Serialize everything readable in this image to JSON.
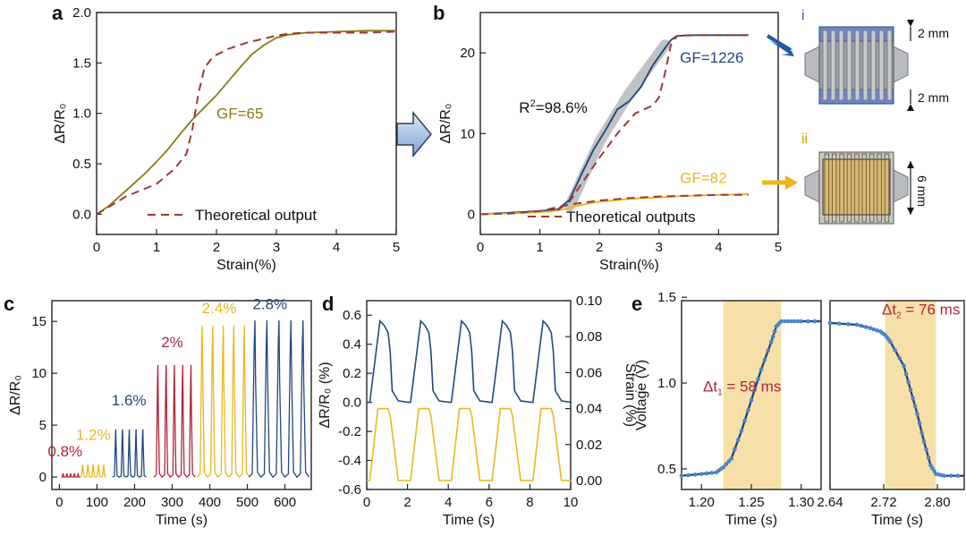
{
  "colors": {
    "olive": "#8a7a10",
    "theory": "#a33535",
    "navy": "#24477a",
    "yellow": "#e8b820",
    "crimson": "#b0243a",
    "band": "#f6db99",
    "fit_band": "#b9bdc0"
  },
  "chart_data": [
    {
      "id": "a",
      "type": "line",
      "panel_label": "a",
      "xlabel": "Strain(%)",
      "ylabel": "ΔR/R₀",
      "xlim": [
        0,
        5
      ],
      "ylim": [
        -0.2,
        2.0
      ],
      "xticks": [
        0,
        1,
        2,
        3,
        4,
        5
      ],
      "xtick_labels": [
        "0",
        "1",
        "2",
        "3",
        "4",
        "5"
      ],
      "yticks": [
        0.0,
        0.5,
        1.0,
        1.5,
        2.0
      ],
      "ytick_labels": [
        "0.0",
        "0.5",
        "1.0",
        "1.5",
        "2.0"
      ],
      "annotations": [
        {
          "text": "GF=65",
          "x": 2.0,
          "y": 0.95,
          "color": "olive"
        }
      ],
      "legend": {
        "label": "Theoretical output",
        "position": "bottom"
      },
      "series": [
        {
          "role": "measured",
          "color": "olive",
          "style": "solid",
          "x": [
            0,
            0.2,
            0.5,
            0.8,
            1.0,
            1.2,
            1.4,
            1.6,
            1.8,
            2.0,
            2.2,
            2.4,
            2.6,
            2.8,
            3.0,
            3.2,
            3.5,
            4.0,
            4.5,
            5.0
          ],
          "y": [
            0,
            0.08,
            0.24,
            0.4,
            0.52,
            0.65,
            0.8,
            0.94,
            1.06,
            1.18,
            1.32,
            1.46,
            1.59,
            1.68,
            1.75,
            1.78,
            1.8,
            1.81,
            1.82,
            1.82
          ]
        },
        {
          "role": "theory",
          "color": "theory",
          "style": "dashed",
          "x": [
            0,
            0.5,
            1.0,
            1.3,
            1.5,
            1.6,
            1.7,
            1.8,
            1.9,
            2.0,
            2.2,
            2.5,
            3.0,
            3.2,
            3.5,
            4.0,
            4.5,
            5.0
          ],
          "y": [
            0,
            0.18,
            0.3,
            0.45,
            0.6,
            0.85,
            1.2,
            1.45,
            1.53,
            1.58,
            1.64,
            1.7,
            1.77,
            1.79,
            1.8,
            1.8,
            1.8,
            1.81
          ]
        }
      ]
    },
    {
      "id": "b",
      "type": "line",
      "panel_label": "b",
      "xlabel": "Strain(%)",
      "ylabel": "ΔR/R₀",
      "xlim": [
        0,
        5
      ],
      "ylim": [
        -2.5,
        25
      ],
      "xticks": [
        0,
        1,
        2,
        3,
        4,
        5
      ],
      "xtick_labels": [
        "0",
        "1",
        "2",
        "3",
        "4",
        "5"
      ],
      "yticks": [
        0,
        10,
        20
      ],
      "ytick_labels": [
        "0",
        "10",
        "20"
      ],
      "annotations": [
        {
          "text": "GF=1226",
          "x": 3.35,
          "y": 18.8,
          "color": "navy"
        },
        {
          "text_main": "R",
          "text_sup": "2",
          "text_rest": "=98.6%",
          "x": 0.65,
          "y": 12.6,
          "color": "ink"
        },
        {
          "text": "GF=82",
          "x": 3.35,
          "y": 3.9,
          "color": "yellow"
        }
      ],
      "legend": {
        "label": "Theoretical outputs",
        "position": "bottom"
      },
      "fit_band": {
        "x": [
          1.5,
          2.0,
          2.5,
          3.1
        ],
        "y": [
          1.0,
          9.0,
          15.0,
          21.0
        ]
      },
      "series": [
        {
          "role": "high-GF",
          "color": "navy",
          "style": "solid",
          "x": [
            0,
            0.5,
            1.0,
            1.3,
            1.5,
            1.7,
            1.9,
            2.1,
            2.3,
            2.5,
            2.7,
            2.9,
            3.1,
            3.2,
            3.3,
            3.5,
            4.0,
            4.5
          ],
          "y": [
            0,
            0.2,
            0.4,
            0.6,
            1.8,
            5.0,
            8.0,
            10.4,
            13.0,
            14.0,
            15.8,
            18.5,
            20.6,
            21.6,
            22.1,
            22.2,
            22.2,
            22.2
          ]
        },
        {
          "role": "low-GF",
          "color": "yellow",
          "style": "solid",
          "x": [
            0,
            0.5,
            1.0,
            1.2,
            1.4,
            1.6,
            1.8,
            2.0,
            2.5,
            3.0,
            3.5,
            4.0,
            4.5
          ],
          "y": [
            0,
            0.1,
            0.25,
            0.35,
            0.6,
            1.0,
            1.3,
            1.55,
            1.9,
            2.1,
            2.3,
            2.4,
            2.5
          ]
        },
        {
          "role": "theory-high",
          "color": "theory",
          "style": "dashed",
          "x": [
            1.3,
            1.5,
            1.7,
            2.0,
            2.3,
            2.6,
            2.9,
            3.0,
            3.1,
            3.2,
            3.3,
            3.6,
            4.5
          ],
          "y": [
            0.5,
            1.6,
            3.8,
            7.0,
            10.0,
            12.5,
            13.5,
            14.5,
            17.5,
            21.0,
            22.1,
            22.2,
            22.2
          ]
        },
        {
          "role": "theory-low",
          "color": "theory",
          "style": "dashed",
          "x": [
            0,
            0.5,
            1.0,
            1.5,
            2.0,
            2.5,
            3.0,
            3.5,
            4.0,
            4.5
          ],
          "y": [
            0,
            0.1,
            0.4,
            1.2,
            1.7,
            2.0,
            2.2,
            2.3,
            2.4,
            2.4
          ]
        }
      ]
    },
    {
      "id": "c",
      "type": "line",
      "panel_label": "c",
      "xlabel": "Time (s)",
      "ylabel": "ΔR/R₀",
      "xlim": [
        -20,
        670
      ],
      "ylim": [
        -1.2,
        17
      ],
      "xticks": [
        0,
        100,
        200,
        300,
        400,
        500,
        600
      ],
      "xtick_labels": [
        "0",
        "100",
        "200",
        "300",
        "400",
        "500",
        "600"
      ],
      "yticks": [
        0,
        5,
        10,
        15
      ],
      "ytick_labels": [
        "0",
        "5",
        "10",
        "15"
      ],
      "groups": [
        {
          "label": "0.8%",
          "color": "crimson",
          "start": 10,
          "period": 10,
          "count": 5,
          "peak": 0.35,
          "width": 4,
          "label_x": 15,
          "label_y": 2.0
        },
        {
          "label": "1.2%",
          "color": "yellow",
          "start": 62,
          "period": 14,
          "count": 5,
          "peak": 1.2,
          "width": 7,
          "label_x": 90,
          "label_y": 3.6
        },
        {
          "label": "1.6%",
          "color": "navy",
          "start": 150,
          "period": 18,
          "count": 5,
          "peak": 4.6,
          "width": 7,
          "label_x": 185,
          "label_y": 6.9
        },
        {
          "label": "2%",
          "color": "crimson",
          "start": 262,
          "period": 22,
          "count": 5,
          "peak": 10.8,
          "width": 8,
          "label_x": 300,
          "label_y": 12.5
        },
        {
          "label": "2.4%",
          "color": "yellow",
          "start": 380,
          "period": 28,
          "count": 5,
          "peak": 14.6,
          "width": 11,
          "label_x": 425,
          "label_y": 15.8
        },
        {
          "label": "2.8%",
          "color": "navy",
          "start": 520,
          "period": 32,
          "count": 5,
          "peak": 15.1,
          "width": 14,
          "label_x": 560,
          "label_y": 16.2
        }
      ]
    },
    {
      "id": "d",
      "type": "line",
      "panel_label": "d",
      "xlabel": "Time (s)",
      "ylabel": "ΔR/R₀ (%)",
      "ylabel2": "Strain (%)",
      "xlim": [
        0,
        10
      ],
      "ylim": [
        -0.6,
        0.7
      ],
      "ylim2": [
        -0.005,
        0.1
      ],
      "xticks": [
        0,
        2,
        4,
        6,
        8,
        10
      ],
      "xtick_labels": [
        "0",
        "2",
        "4",
        "6",
        "8",
        "10"
      ],
      "yticks": [
        -0.6,
        -0.4,
        -0.2,
        0.0,
        0.2,
        0.4,
        0.6
      ],
      "ytick_labels": [
        "-0.6",
        "-0.4",
        "-0.2",
        "0.0",
        "0.2",
        "0.4",
        "0.6"
      ],
      "yticks2": [
        0.0,
        0.02,
        0.04,
        0.06,
        0.08,
        0.1
      ],
      "ytick_labels2": [
        "0.00",
        "0.02",
        "0.04",
        "0.06",
        "0.08",
        "0.10"
      ],
      "period": 2.0,
      "phase": 0.1,
      "cycles": 5,
      "resistance": {
        "color": "navy",
        "low": 0.0,
        "high": 0.56,
        "mid": 0.4
      },
      "strain": {
        "color": "yellow",
        "low": 0.0,
        "high": 0.04
      }
    },
    {
      "id": "e1",
      "type": "line",
      "panel_label": "e",
      "xlabel": "Time (s)",
      "ylabel": "Voltage (V)",
      "xlim": [
        1.18,
        1.32
      ],
      "ylim": [
        0.38,
        1.48
      ],
      "xticks": [
        1.2,
        1.25,
        1.3
      ],
      "xtick_labels": [
        "1.20",
        "1.25",
        "1.30"
      ],
      "yticks": [
        0.5,
        1.0,
        1.5
      ],
      "ytick_labels": [
        "0.5",
        "1.0",
        "1.5"
      ],
      "band": [
        1.222,
        1.28
      ],
      "annotation": {
        "text_main": "Δt",
        "text_sub": "1",
        "text_rest": " = 58 ms",
        "color": "crimson"
      },
      "series": [
        {
          "color": "navy",
          "x": [
            1.18,
            1.2,
            1.215,
            1.222,
            1.23,
            1.24,
            1.25,
            1.26,
            1.27,
            1.275,
            1.28,
            1.29,
            1.3,
            1.32
          ],
          "y": [
            0.46,
            0.47,
            0.48,
            0.51,
            0.56,
            0.72,
            0.9,
            1.08,
            1.24,
            1.33,
            1.36,
            1.36,
            1.36,
            1.36
          ]
        }
      ]
    },
    {
      "id": "e2",
      "type": "line",
      "xlabel": "Time (s)",
      "ylabel": "",
      "xlim": [
        2.64,
        2.84
      ],
      "ylim": [
        0.38,
        1.48
      ],
      "xticks": [
        2.64,
        2.72,
        2.8
      ],
      "xtick_labels": [
        "2.64",
        "2.72",
        "2.80"
      ],
      "yticks": [],
      "ytick_labels": [],
      "band": [
        2.722,
        2.798
      ],
      "annotation": {
        "text_main": "Δt",
        "text_sub": "2",
        "text_rest": " = 76 ms",
        "color": "crimson"
      },
      "series": [
        {
          "color": "navy",
          "x": [
            2.64,
            2.68,
            2.7,
            2.715,
            2.722,
            2.73,
            2.75,
            2.76,
            2.77,
            2.78,
            2.79,
            2.798,
            2.81,
            2.84
          ],
          "y": [
            1.35,
            1.34,
            1.32,
            1.3,
            1.28,
            1.24,
            1.1,
            0.96,
            0.82,
            0.66,
            0.52,
            0.47,
            0.46,
            0.46
          ]
        }
      ]
    }
  ],
  "schematics": [
    {
      "id": "i",
      "label": "i",
      "dims": [
        "2 mm",
        "2 mm"
      ],
      "fill": "#9aa0a6",
      "pad": "#3b5fa8",
      "arrow_color": "#1f5aa8"
    },
    {
      "id": "ii",
      "label": "ii",
      "dims": [
        "6 mm"
      ],
      "fill": "#d9b978",
      "arrow_color": "#f0b418"
    }
  ]
}
